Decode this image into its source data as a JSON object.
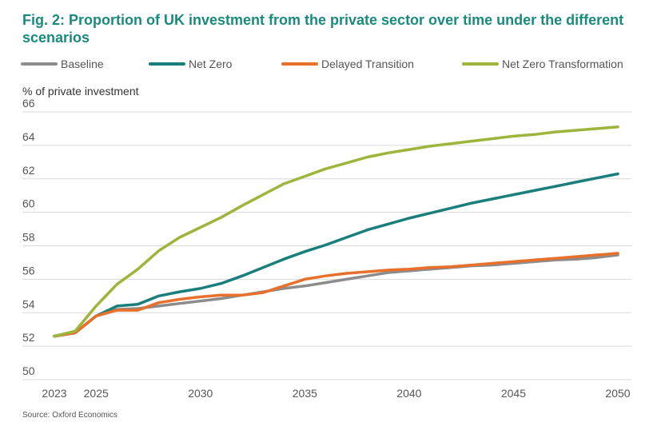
{
  "chart_data": {
    "type": "line",
    "title": "Fig. 2: Proportion of UK investment from the private sector over time under the different scenarios",
    "ylabel": "% of private investment",
    "xlabel": "",
    "source": "Source: Oxford Economics",
    "xlim": [
      2023,
      2050
    ],
    "ylim": [
      50,
      66
    ],
    "x_ticks": [
      2023,
      2025,
      2030,
      2035,
      2040,
      2045,
      2050
    ],
    "y_ticks": [
      50,
      52,
      54,
      56,
      58,
      60,
      62,
      64,
      66
    ],
    "grid": true,
    "legend_position": "top",
    "x": [
      2023,
      2024,
      2025,
      2026,
      2027,
      2028,
      2029,
      2030,
      2031,
      2032,
      2033,
      2034,
      2035,
      2036,
      2037,
      2038,
      2039,
      2040,
      2041,
      2042,
      2043,
      2044,
      2045,
      2046,
      2047,
      2048,
      2049,
      2050
    ],
    "series": [
      {
        "name": "Baseline",
        "color": "#8c8c8c",
        "values": [
          52.6,
          52.8,
          53.8,
          54.2,
          54.25,
          54.4,
          54.55,
          54.7,
          54.85,
          55.05,
          55.25,
          55.45,
          55.6,
          55.8,
          56.0,
          56.2,
          56.4,
          56.5,
          56.6,
          56.7,
          56.8,
          56.85,
          56.95,
          57.05,
          57.15,
          57.2,
          57.3,
          57.45
        ]
      },
      {
        "name": "Net Zero",
        "color": "#1a7f7a",
        "values": [
          52.6,
          52.8,
          53.8,
          54.4,
          54.5,
          55.0,
          55.25,
          55.45,
          55.75,
          56.2,
          56.7,
          57.2,
          57.65,
          58.05,
          58.5,
          58.95,
          59.3,
          59.65,
          59.95,
          60.25,
          60.55,
          60.8,
          61.05,
          61.3,
          61.55,
          61.8,
          62.05,
          62.3
        ]
      },
      {
        "name": "Delayed Transition",
        "color": "#e8702a",
        "values": [
          52.6,
          52.8,
          53.8,
          54.15,
          54.15,
          54.6,
          54.8,
          54.95,
          55.05,
          55.05,
          55.2,
          55.6,
          56.0,
          56.2,
          56.35,
          56.45,
          56.55,
          56.6,
          56.7,
          56.75,
          56.85,
          56.95,
          57.05,
          57.15,
          57.25,
          57.35,
          57.45,
          57.55
        ]
      },
      {
        "name": "Net Zero Transformation",
        "color": "#9db53a",
        "values": [
          52.6,
          52.9,
          54.4,
          55.7,
          56.6,
          57.7,
          58.5,
          59.1,
          59.7,
          60.4,
          61.05,
          61.7,
          62.15,
          62.6,
          62.95,
          63.3,
          63.55,
          63.75,
          63.95,
          64.1,
          64.25,
          64.4,
          64.55,
          64.65,
          64.8,
          64.9,
          65.0,
          65.1
        ]
      }
    ]
  }
}
